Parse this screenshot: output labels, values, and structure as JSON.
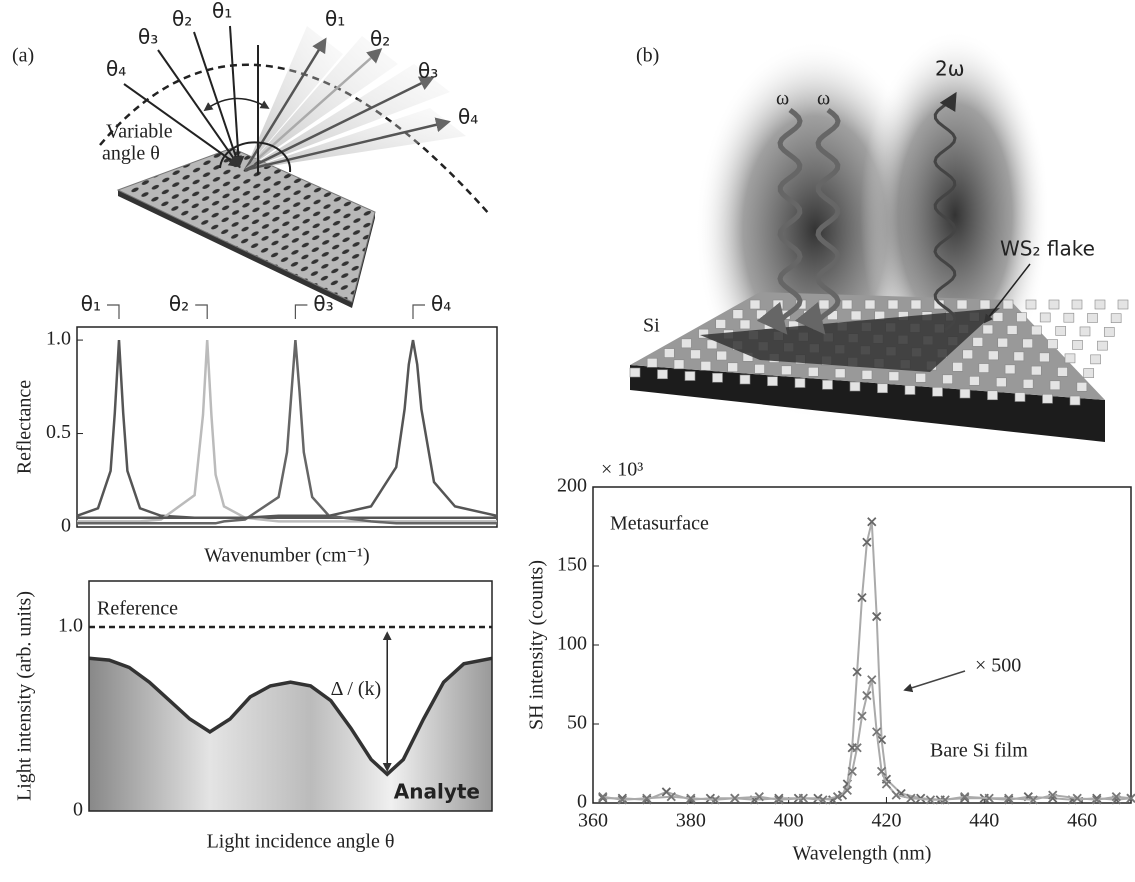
{
  "panel_labels": [
    "(a)",
    "(b)"
  ],
  "illustration_a": {
    "incident_angles": [
      "θ₄",
      "θ₃",
      "θ₂",
      "θ₁"
    ],
    "reflected_angles": [
      "θ₁",
      "θ₂",
      "θ₃",
      "θ₄"
    ],
    "caption": [
      "Variable",
      "angle θ"
    ]
  },
  "illustration_b": {
    "inputs": [
      "ω",
      "ω"
    ],
    "output": "2ω",
    "flake": "WS₂ flake",
    "substrate": "Si"
  },
  "chart_data": [
    {
      "type": "line",
      "ylabel": "Reflectance",
      "xlabel": "Wavenumber (cm⁻¹)",
      "x": [
        0,
        5,
        8,
        9,
        10,
        11,
        12,
        15,
        20,
        28,
        30,
        31,
        32,
        33,
        35,
        40,
        48,
        50,
        52,
        53,
        54,
        56,
        60,
        70,
        76,
        78,
        79,
        80,
        81,
        82,
        85,
        90,
        100
      ],
      "xlim": [
        0,
        100
      ],
      "ylim": [
        0,
        1.07
      ],
      "yticks": [
        0,
        0.5,
        {
          "value": 1,
          "label": "1.0"
        }
      ],
      "series": [
        {
          "name": "θ₁",
          "color": "#555555",
          "values": [
            0.06,
            0.1,
            0.3,
            0.61,
            1,
            0.61,
            0.3,
            0.1,
            0.06,
            0.05,
            0.05,
            0.05,
            0.05,
            0.05,
            0.05,
            0.05,
            0.05,
            0.05,
            0.05,
            0.05,
            0.05,
            0.05,
            0.05,
            0.05,
            0.05,
            0.05,
            0.05,
            0.05,
            0.05,
            0.05,
            0.05,
            0.05,
            0.05
          ]
        },
        {
          "name": "θ₂",
          "color": "#bbbbbb",
          "values": [
            0.03,
            0.03,
            0.03,
            0.03,
            0.03,
            0.03,
            0.03,
            0.03,
            0.04,
            0.17,
            0.6,
            1,
            0.6,
            0.28,
            0.11,
            0.05,
            0.03,
            0.03,
            0.03,
            0.03,
            0.03,
            0.03,
            0.03,
            0.03,
            0.03,
            0.03,
            0.03,
            0.03,
            0.03,
            0.03,
            0.03,
            0.03,
            0.03
          ]
        },
        {
          "name": "θ₃",
          "color": "#666666",
          "values": [
            0.02,
            0.02,
            0.02,
            0.02,
            0.02,
            0.02,
            0.02,
            0.02,
            0.02,
            0.02,
            0.02,
            0.02,
            0.02,
            0.02,
            0.03,
            0.04,
            0.16,
            0.4,
            1,
            0.72,
            0.4,
            0.16,
            0.06,
            0.03,
            0.02,
            0.02,
            0.02,
            0.02,
            0.02,
            0.02,
            0.02,
            0.02,
            0.02
          ]
        },
        {
          "name": "θ₄",
          "color": "#555555",
          "values": [
            0.05,
            0.05,
            0.05,
            0.05,
            0.05,
            0.05,
            0.05,
            0.05,
            0.05,
            0.05,
            0.05,
            0.05,
            0.05,
            0.05,
            0.05,
            0.05,
            0.06,
            0.06,
            0.06,
            0.06,
            0.06,
            0.06,
            0.06,
            0.11,
            0.32,
            0.63,
            0.87,
            1,
            0.87,
            0.63,
            0.24,
            0.11,
            0.06
          ]
        }
      ]
    },
    {
      "type": "area",
      "ylabel": "Light intensity (arb. units)",
      "xlabel": "Light incidence angle θ",
      "x": [
        0,
        5,
        10,
        15,
        20,
        25,
        30,
        35,
        40,
        45,
        50,
        55,
        60,
        65,
        70,
        74,
        78,
        83,
        88,
        93,
        100
      ],
      "values": [
        0.83,
        0.82,
        0.78,
        0.7,
        0.6,
        0.5,
        0.43,
        0.5,
        0.62,
        0.68,
        0.7,
        0.68,
        0.6,
        0.45,
        0.28,
        0.2,
        0.28,
        0.5,
        0.7,
        0.8,
        0.83
      ],
      "color": "#333333",
      "xlim": [
        0,
        100
      ],
      "ylim": [
        0,
        1.25
      ],
      "yticks": [
        0,
        {
          "value": 1,
          "label": "1.0"
        }
      ],
      "reference": {
        "label": "Reference",
        "value": 1
      },
      "annotations": [
        "Δ / (k)",
        "Analyte"
      ]
    },
    {
      "type": "scatter",
      "ylabel": "SH intensity (counts)",
      "xlabel": "Wavelength (nm)",
      "multiplier": "× 10³",
      "xlim": [
        360,
        470
      ],
      "ylim": [
        0,
        200
      ],
      "xticks": [
        360,
        380,
        400,
        420,
        440,
        460
      ],
      "yticks": [
        0,
        50,
        100,
        150,
        200
      ],
      "series": [
        {
          "name": "Metasurface",
          "color": "#888888",
          "marker_color": "#666666",
          "x": [
            362,
            366,
            371,
            375,
            380,
            384,
            389,
            393,
            398,
            402,
            406,
            409,
            411,
            412,
            413,
            414,
            415,
            416,
            417,
            418,
            419,
            420,
            423,
            427,
            431,
            436,
            440,
            445,
            449,
            454,
            458,
            463,
            467,
            470
          ],
          "values": [
            3,
            3,
            2,
            7,
            2,
            3,
            3,
            2,
            3,
            3,
            3,
            2,
            5,
            12,
            35,
            83,
            130,
            165,
            178,
            118,
            40,
            15,
            6,
            3,
            2,
            3,
            3,
            2,
            4,
            3,
            2,
            3,
            2,
            3
          ]
        },
        {
          "name": "Bare Si film",
          "color": "#222222",
          "marker_color": "#777777",
          "x": [
            362,
            366,
            371,
            376,
            380,
            385,
            389,
            394,
            398,
            403,
            407,
            410,
            412,
            413,
            414,
            415,
            416,
            417,
            418,
            419,
            420,
            422,
            425,
            429,
            432,
            436,
            441,
            445,
            450,
            454,
            459,
            463,
            467,
            470
          ],
          "values": [
            4,
            2,
            3,
            4,
            3,
            2,
            3,
            4,
            2,
            3,
            2,
            4,
            8,
            20,
            35,
            55,
            68,
            78,
            45,
            20,
            12,
            5,
            3,
            2,
            2,
            4,
            3,
            3,
            2,
            5,
            3,
            2,
            4,
            3
          ]
        }
      ],
      "annotations": [
        "× 500"
      ]
    }
  ]
}
